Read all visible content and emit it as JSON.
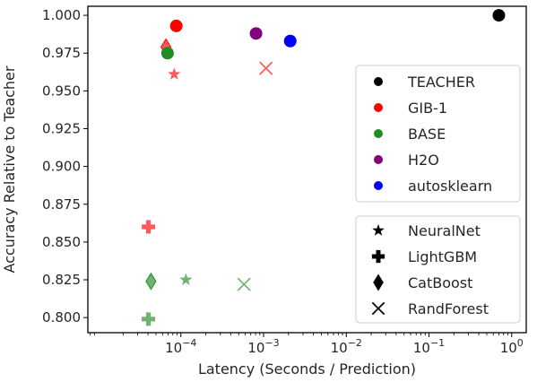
{
  "chart_data": {
    "type": "scatter",
    "title": "",
    "xlabel": "Latency (Seconds / Prediction)",
    "ylabel": "Accuracy Relative to Teacher",
    "xscale": "log",
    "xlim": [
      7.5e-06,
      1.5
    ],
    "ylim": [
      0.79,
      1.006
    ],
    "x_ticks": [
      {
        "value": 0.0001,
        "base": "10",
        "exp": "−4"
      },
      {
        "value": 0.001,
        "base": "10",
        "exp": "−3"
      },
      {
        "value": 0.01,
        "base": "10",
        "exp": "−2"
      },
      {
        "value": 0.1,
        "base": "10",
        "exp": "−1"
      },
      {
        "value": 1,
        "base": "10",
        "exp": "0"
      }
    ],
    "y_ticks": [
      {
        "value": 0.8,
        "label": "0.800"
      },
      {
        "value": 0.825,
        "label": "0.825"
      },
      {
        "value": 0.85,
        "label": "0.850"
      },
      {
        "value": 0.875,
        "label": "0.875"
      },
      {
        "value": 0.9,
        "label": "0.900"
      },
      {
        "value": 0.925,
        "label": "0.925"
      },
      {
        "value": 0.95,
        "label": "0.950"
      },
      {
        "value": 0.975,
        "label": "0.975"
      },
      {
        "value": 1.0,
        "label": "1.000"
      }
    ],
    "grid": false,
    "color_legend": {
      "placement": "right",
      "entries": [
        {
          "name": "TEACHER",
          "color": "#000000"
        },
        {
          "name": "GIB-1",
          "color": "#ff0000"
        },
        {
          "name": "BASE",
          "color": "#228b22"
        },
        {
          "name": "H2O",
          "color": "#800080"
        },
        {
          "name": "autosklearn",
          "color": "#0000ff"
        }
      ]
    },
    "marker_legend": {
      "placement": "lower-right",
      "entries": [
        {
          "name": "NeuralNet",
          "marker": "star"
        },
        {
          "name": "LightGBM",
          "marker": "plus"
        },
        {
          "name": "CatBoost",
          "marker": "diamond"
        },
        {
          "name": "RandForest",
          "marker": "x"
        }
      ]
    },
    "series": [
      {
        "group": "TEACHER",
        "color": "#000000",
        "points": [
          {
            "x": 0.7,
            "y": 1.0,
            "marker": "circle"
          }
        ]
      },
      {
        "group": "GIB-1",
        "color": "#ff0000",
        "points": [
          {
            "x": 8.8e-05,
            "y": 0.993,
            "marker": "circle"
          },
          {
            "x": 6.6e-05,
            "y": 0.979,
            "marker": "diamond"
          },
          {
            "x": 8.3e-05,
            "y": 0.961,
            "marker": "star"
          },
          {
            "x": 0.00107,
            "y": 0.965,
            "marker": "x"
          },
          {
            "x": 4.05e-05,
            "y": 0.86,
            "marker": "plus"
          }
        ]
      },
      {
        "group": "BASE",
        "color": "#228b22",
        "points": [
          {
            "x": 6.9e-05,
            "y": 0.975,
            "marker": "circle"
          },
          {
            "x": 4.35e-05,
            "y": 0.824,
            "marker": "diamond"
          },
          {
            "x": 0.000115,
            "y": 0.825,
            "marker": "star"
          },
          {
            "x": 0.00058,
            "y": 0.822,
            "marker": "x"
          },
          {
            "x": 4.05e-05,
            "y": 0.799,
            "marker": "plus"
          }
        ]
      },
      {
        "group": "H2O",
        "color": "#800080",
        "points": [
          {
            "x": 0.00081,
            "y": 0.988,
            "marker": "circle"
          }
        ]
      },
      {
        "group": "autosklearn",
        "color": "#0000ff",
        "points": [
          {
            "x": 0.0021,
            "y": 0.983,
            "marker": "circle"
          }
        ]
      }
    ]
  }
}
